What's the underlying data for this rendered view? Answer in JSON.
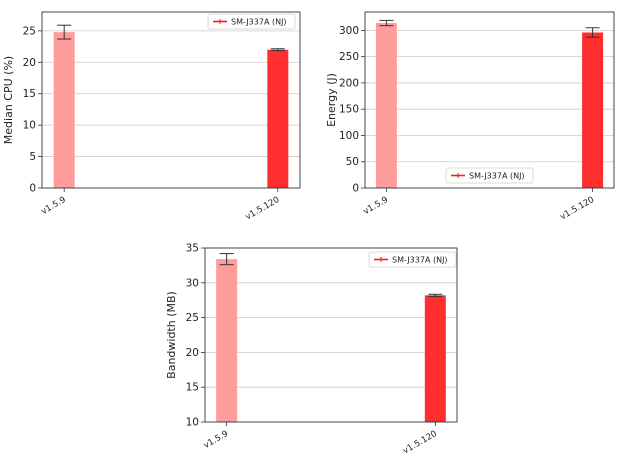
{
  "colors": {
    "light_bar": "#ff9c9c",
    "dark_bar": "#ff2f2f",
    "legend_line": "#ff1a1a",
    "grid": "#cccccc",
    "frame": "#333333",
    "error": "#333333"
  },
  "chart_data": [
    {
      "type": "bar",
      "ylabel": "Median CPU (%)",
      "categories": [
        "v1.5.9",
        "v1.5.120"
      ],
      "values": [
        24.8,
        22.0
      ],
      "errors": [
        1.1,
        0.15
      ],
      "bar_colors": [
        "light",
        "dark"
      ],
      "ylim": [
        0,
        28
      ],
      "yticks": [
        0,
        5,
        10,
        15,
        20,
        25
      ],
      "grid": true,
      "legend": {
        "label": "SM-J337A (NJ)",
        "placement": "top-right"
      }
    },
    {
      "type": "bar",
      "ylabel": "Energy (J)",
      "categories": [
        "v1.5.9",
        "v1.5.120"
      ],
      "values": [
        314,
        296
      ],
      "errors": [
        5,
        9
      ],
      "bar_colors": [
        "light",
        "dark"
      ],
      "ylim": [
        0,
        335
      ],
      "yticks": [
        0,
        50,
        100,
        150,
        200,
        250,
        300
      ],
      "grid": true,
      "legend": {
        "label": "SM-J337A (NJ)",
        "placement": "lower-center"
      }
    },
    {
      "type": "bar",
      "ylabel": "Bandwidth (MB)",
      "categories": [
        "v1.5.9",
        "v1.5.120"
      ],
      "values": [
        33.4,
        28.2
      ],
      "errors": [
        0.8,
        0.15
      ],
      "bar_colors": [
        "light",
        "dark"
      ],
      "ylim": [
        10,
        35
      ],
      "yticks": [
        10,
        15,
        20,
        25,
        30,
        35
      ],
      "grid": true,
      "legend": {
        "label": "SM-J337A (NJ)",
        "placement": "top-right"
      }
    }
  ]
}
